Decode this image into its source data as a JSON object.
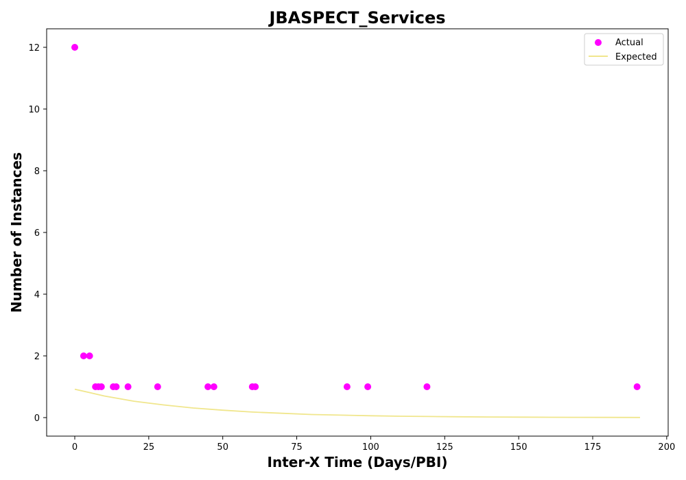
{
  "chart_data": {
    "type": "scatter",
    "title": "JBASPECT_Services",
    "xlabel": "Inter-X Time (Days/PBI)",
    "ylabel": "Number of Instances",
    "xlim": [
      -9.5,
      200.5
    ],
    "ylim": [
      -0.6,
      12.6
    ],
    "xticks": [
      0,
      25,
      50,
      75,
      100,
      125,
      150,
      175,
      200
    ],
    "yticks": [
      0,
      2,
      4,
      6,
      8,
      10,
      12
    ],
    "grid": false,
    "legend": "top-right",
    "series": [
      {
        "name": "Actual",
        "kind": "scatter",
        "color": "#ff00ff",
        "x": [
          0,
          3,
          5,
          7,
          8,
          9,
          13,
          14,
          18,
          28,
          45,
          47,
          60,
          61,
          92,
          99,
          119,
          190
        ],
        "y": [
          12,
          2,
          2,
          1,
          1,
          1,
          1,
          1,
          1,
          1,
          1,
          1,
          1,
          1,
          1,
          1,
          1,
          1
        ]
      },
      {
        "name": "Expected",
        "kind": "line",
        "color": "#f0e68c",
        "x": [
          0,
          10,
          20,
          30,
          40,
          50,
          60,
          70,
          80,
          90,
          100,
          110,
          120,
          130,
          140,
          150,
          160,
          170,
          180,
          191
        ],
        "y": [
          0.92,
          0.7,
          0.53,
          0.41,
          0.31,
          0.24,
          0.18,
          0.14,
          0.1,
          0.08,
          0.06,
          0.045,
          0.035,
          0.027,
          0.02,
          0.015,
          0.012,
          0.009,
          0.007,
          0.005
        ]
      }
    ]
  }
}
